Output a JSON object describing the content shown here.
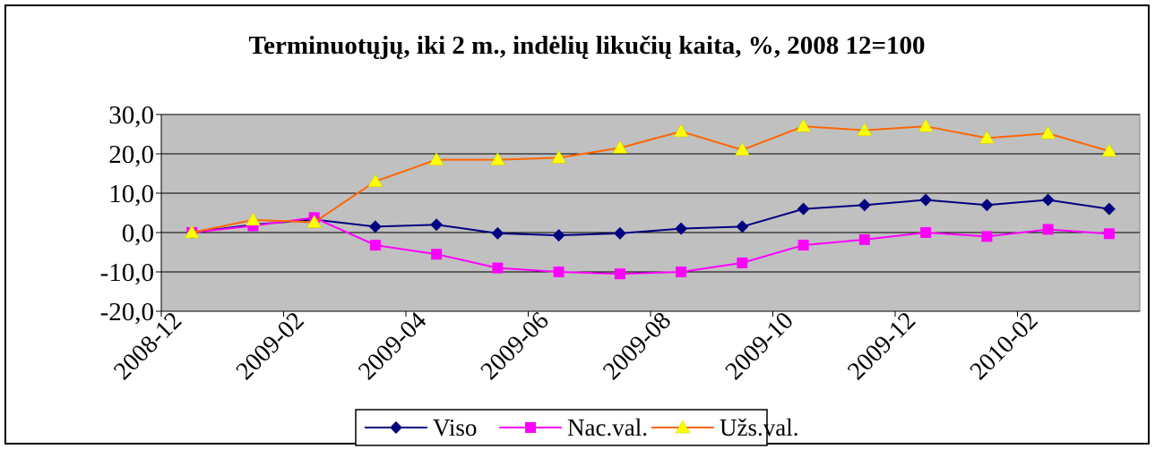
{
  "chart_data": {
    "type": "line",
    "title": "Terminuotųjų, iki 2 m., indėlių likučių kaita, %, 2008 12=100",
    "categories": [
      "2008-12",
      null,
      "2009-02",
      null,
      "2009-04",
      null,
      "2009-06",
      null,
      "2009-08",
      null,
      "2009-10",
      null,
      "2009-12",
      null,
      "2010-02",
      null
    ],
    "series": [
      {
        "name": "Viso",
        "color": "#000080",
        "marker": "diamond",
        "marker_color": "#000080",
        "values": [
          0,
          2,
          3.3,
          1.5,
          2,
          -0.2,
          -0.7,
          -0.2,
          1,
          1.5,
          6,
          7,
          8.3,
          7,
          8.3,
          6
        ]
      },
      {
        "name": "Nac.val.",
        "color": "#ff00ff",
        "marker": "square",
        "marker_color": "#ff00ff",
        "values": [
          0,
          1.7,
          3.8,
          -3.2,
          -5.5,
          -9,
          -10,
          -10.5,
          -10,
          -7.7,
          -3.2,
          -1.8,
          0,
          -1,
          0.8,
          -0.3
        ]
      },
      {
        "name": "Užs.val.",
        "color": "#ff6600",
        "marker": "triangle",
        "marker_color": "#ffff00",
        "values": [
          0,
          3.2,
          2.6,
          13,
          18.5,
          18.5,
          19,
          21.5,
          25.7,
          21,
          27,
          26,
          27,
          24,
          25.2,
          20.7
        ]
      }
    ],
    "ylim": [
      -20,
      30
    ],
    "yticks": [
      {
        "value": -20,
        "label": "-20,0"
      },
      {
        "value": -10,
        "label": "-10,0"
      },
      {
        "value": 0,
        "label": "0,0"
      },
      {
        "value": 10,
        "label": "10,0"
      },
      {
        "value": 20,
        "label": "20,0"
      },
      {
        "value": 30,
        "label": "30,0"
      }
    ],
    "grid": true,
    "plot_background": "#c0c0c0",
    "legend": "bottom"
  }
}
